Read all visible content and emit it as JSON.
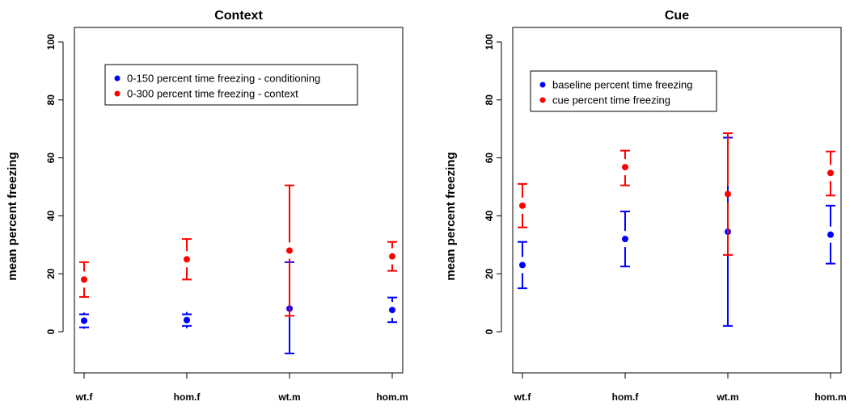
{
  "colors": {
    "series1": "#0000ff",
    "series2": "#ff0000",
    "axis": "#000000"
  },
  "chart_data": [
    {
      "type": "scatter",
      "title": "Context",
      "ylabel": "mean percent freezing",
      "xlabel": "",
      "categories": [
        "wt.f",
        "hom.f",
        "wt.m",
        "hom.m"
      ],
      "yticks": [
        "0",
        "20",
        "40",
        "60",
        "80",
        "100"
      ],
      "ylim": [
        -14,
        103
      ],
      "grid": false,
      "legend_position": "top-center",
      "series": [
        {
          "name": "0-150 percent time freezing - conditioning",
          "color": "#0000ff",
          "values": [
            3.8,
            4.0,
            8.0,
            7.5
          ],
          "err_low": [
            1.5,
            2.0,
            -7.5,
            3.3
          ],
          "err_high": [
            6.0,
            6.0,
            24.0,
            11.8
          ]
        },
        {
          "name": "0-300 percent time freezing - context",
          "color": "#ff0000",
          "values": [
            18.0,
            25.0,
            28.0,
            26.0
          ],
          "err_low": [
            12.0,
            18.0,
            5.5,
            21.0
          ],
          "err_high": [
            24.0,
            32.0,
            50.5,
            31.0
          ]
        }
      ]
    },
    {
      "type": "scatter",
      "title": "Cue",
      "ylabel": "mean percent freezing",
      "xlabel": "",
      "categories": [
        "wt.f",
        "hom.f",
        "wt.m",
        "hom.m"
      ],
      "yticks": [
        "0",
        "20",
        "40",
        "60",
        "80",
        "100"
      ],
      "ylim": [
        -14,
        103
      ],
      "grid": false,
      "legend_position": "top-center",
      "series": [
        {
          "name": "baseline percent time freezing",
          "color": "#0000ff",
          "values": [
            23.0,
            32.0,
            34.5,
            33.5
          ],
          "err_low": [
            15.0,
            22.5,
            2.0,
            23.5
          ],
          "err_high": [
            31.0,
            41.5,
            67.0,
            43.5
          ]
        },
        {
          "name": "cue percent time freezing",
          "color": "#ff0000",
          "values": [
            43.5,
            56.8,
            47.5,
            54.8
          ],
          "err_low": [
            36.0,
            50.5,
            26.5,
            47.0
          ],
          "err_high": [
            51.0,
            62.5,
            68.5,
            62.2
          ]
        }
      ]
    }
  ]
}
